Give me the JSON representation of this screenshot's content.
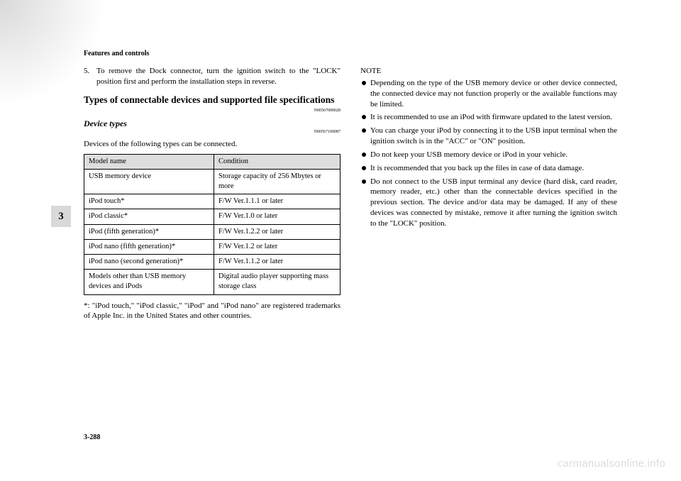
{
  "header": {
    "section": "Features and controls"
  },
  "sideTab": "3",
  "pageNumber": "3-288",
  "watermark": "carmanualsonline.info",
  "left": {
    "step": {
      "num": "5.",
      "text": "To remove the Dock connector, turn the ignition switch to the \"LOCK\" position first and perform the installation steps in reverse."
    },
    "h2": "Types of connectable devices and supported file specifications",
    "ref1": "N00567000028",
    "h3": "Device types",
    "ref2": "N00567100087",
    "intro": "Devices of the following types can be connected.",
    "table": {
      "headers": [
        "Model name",
        "Condition"
      ],
      "rows": [
        [
          "USB memory device",
          "Storage capacity of 256 Mbytes or more"
        ],
        [
          "iPod touch*",
          "F/W Ver.1.1.1 or later"
        ],
        [
          "iPod classic*",
          "F/W Ver.1.0 or later"
        ],
        [
          "iPod (fifth generation)*",
          "F/W Ver.1.2.2 or later"
        ],
        [
          "iPod nano (fifth generation)*",
          "F/W Ver.1.2 or later"
        ],
        [
          "iPod nano (second generation)*",
          "F/W Ver.1.1.2 or later"
        ],
        [
          "Models other than USB memory devices and iPods",
          "Digital audio player supporting mass storage class"
        ]
      ]
    },
    "footnote": "*: \"iPod touch,\" \"iPod classic,\" \"iPod\" and \"iPod nano\" are registered trademarks of Apple Inc. in the United States and other countries."
  },
  "right": {
    "noteLabel": "NOTE",
    "bullets": [
      "Depending on the type of the USB memory device or other device connected, the connected device may not function properly or the available functions may be limited.",
      "It is recommended to use an iPod with firmware updated to the latest version.",
      "You can charge your iPod by connecting it to the USB input terminal when the ignition switch is in the \"ACC\" or \"ON\" position.",
      "Do not keep your USB memory device or iPod in your vehicle.",
      "It is recommended that you back up the files in case of data damage.",
      "Do not connect to the USB input terminal any device (hard disk, card reader, memory reader, etc.) other than the connectable devices specified in the previous section. The device and/or data may be damaged. If any of these devices was connected by mistake, remove it after turning the ignition switch to the \"LOCK\" position."
    ]
  }
}
